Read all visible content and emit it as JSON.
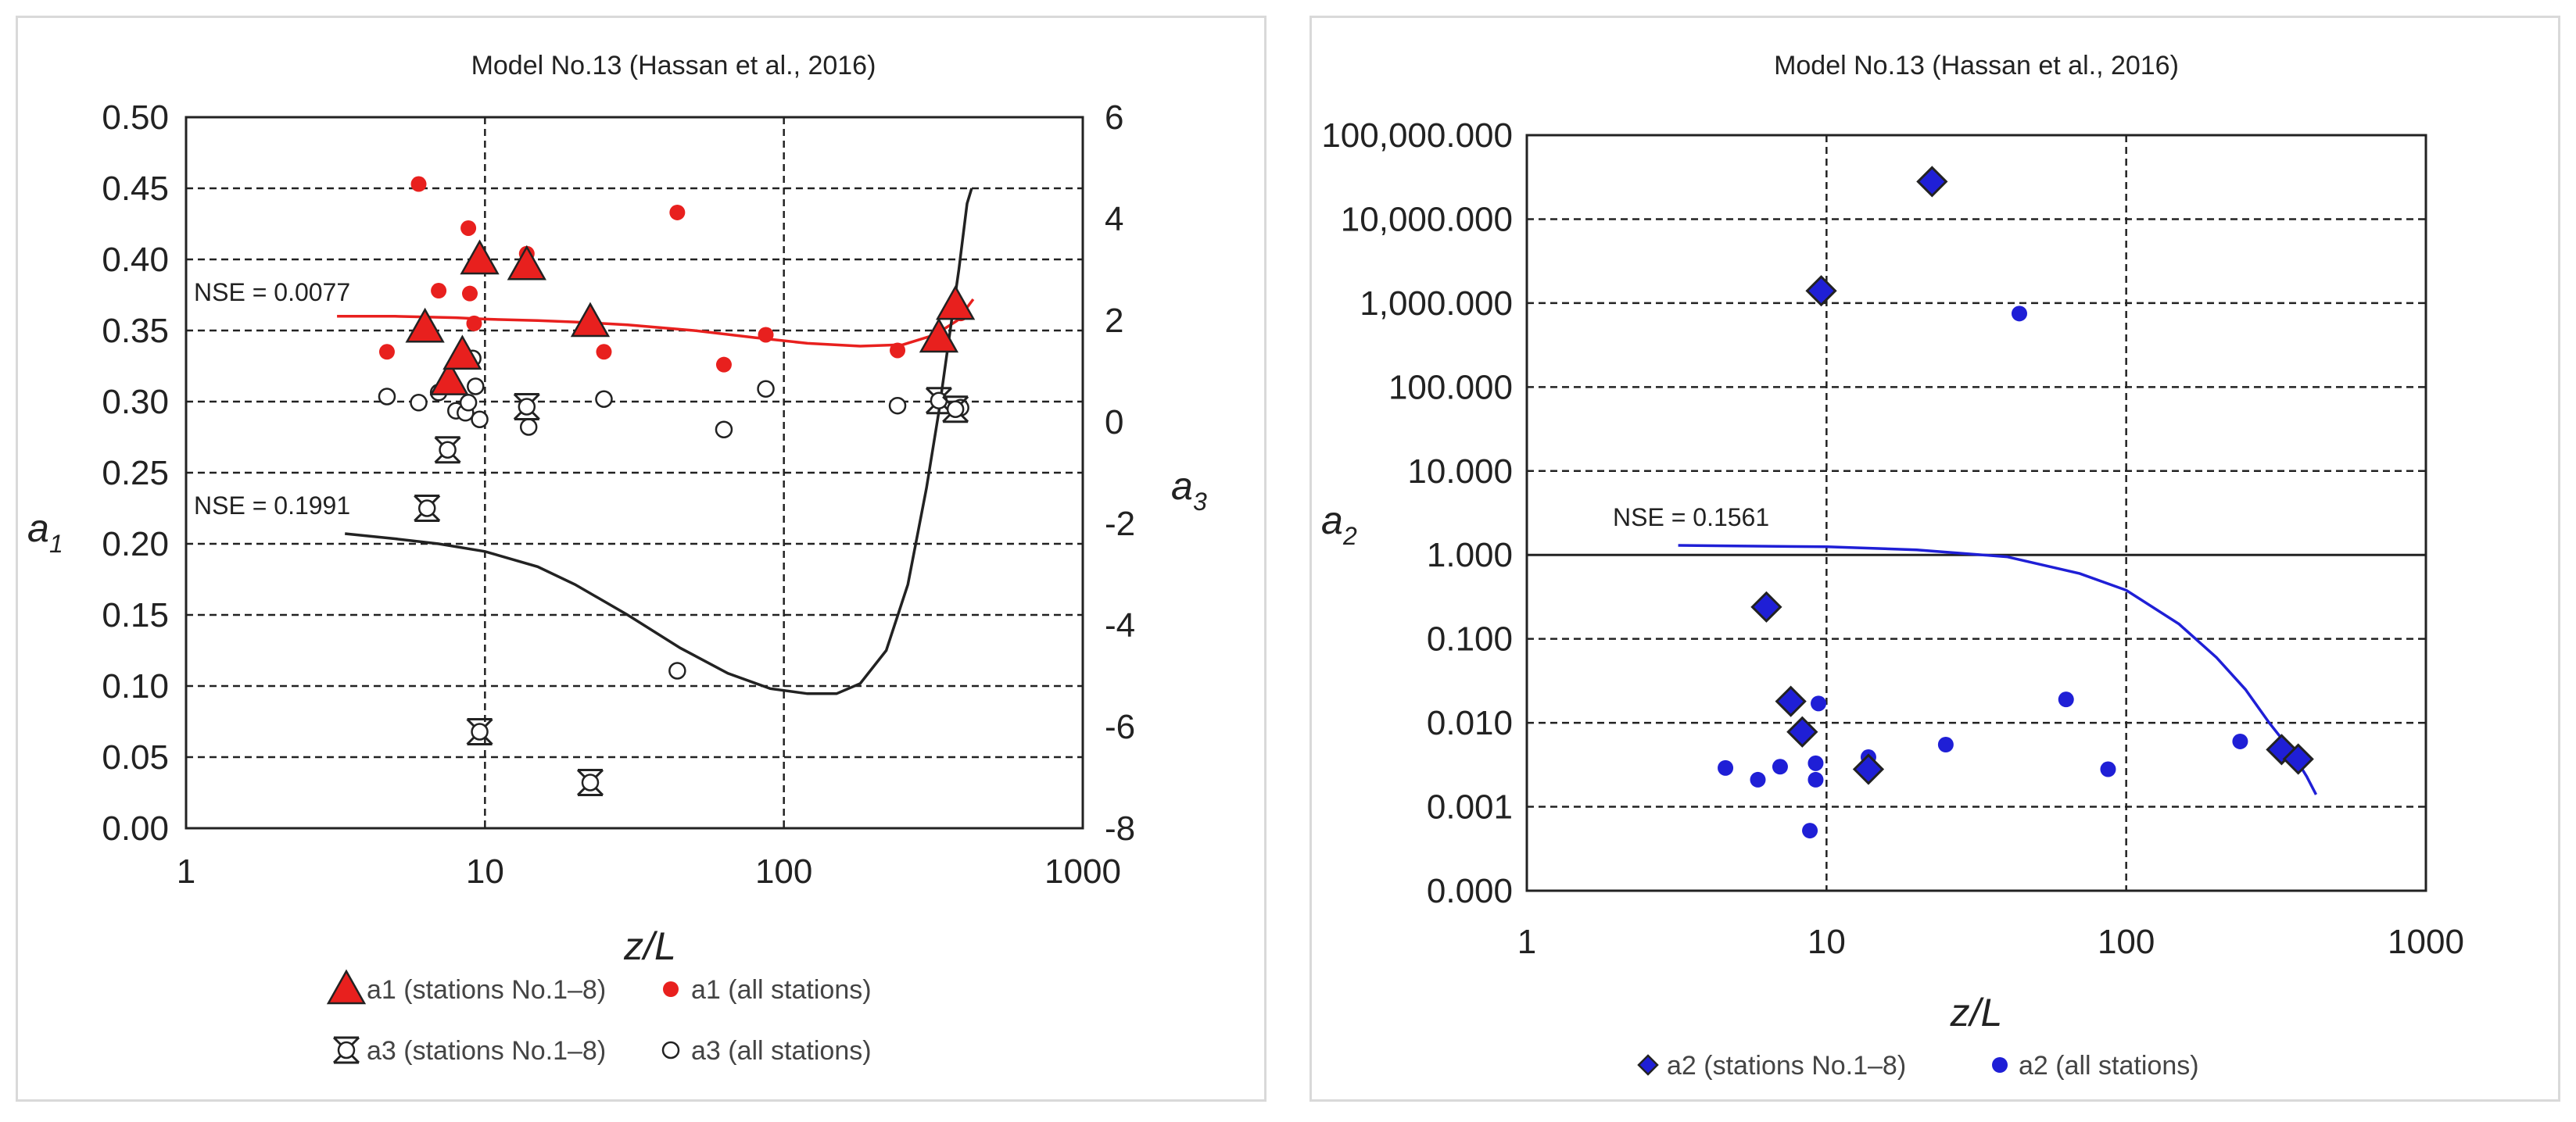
{
  "chart_data": [
    {
      "type": "scatter",
      "title": "Model No.13 (Hassan et al., 2016)",
      "xlabel": "z/L",
      "x_scale": "log",
      "xlim": [
        1,
        1000
      ],
      "x_ticks": [
        "1",
        "10",
        "100",
        "1000"
      ],
      "y_left": {
        "label": "a",
        "label_sub": "1",
        "ylim": [
          0,
          0.5
        ],
        "ticks": [
          "0.00",
          "0.05",
          "0.10",
          "0.15",
          "0.20",
          "0.25",
          "0.30",
          "0.35",
          "0.40",
          "0.45",
          "0.50"
        ]
      },
      "y_right": {
        "label": "a",
        "label_sub": "3",
        "ylim": [
          -8,
          6
        ],
        "ticks": [
          "-8",
          "-6",
          "-4",
          "-2",
          "0",
          "2",
          "4",
          "6"
        ]
      },
      "grid": true,
      "annotations": [
        "NSE = 0.0077",
        "NSE = 0.1991"
      ],
      "series": [
        {
          "name": "a1 (stations No.1–8)",
          "marker": "triangle",
          "color": "#e8201e",
          "axis": "left",
          "points": [
            [
              6.3,
              0.352
            ],
            [
              7.6,
              0.315
            ],
            [
              8.4,
              0.333
            ],
            [
              9.6,
              0.4
            ],
            [
              13.8,
              0.396
            ],
            [
              22.5,
              0.356
            ],
            [
              330,
              0.345
            ],
            [
              375,
              0.368
            ]
          ]
        },
        {
          "name": "a1 (all stations)",
          "marker": "dot",
          "color": "#e8201e",
          "axis": "left",
          "points": [
            [
              4.7,
              0.335
            ],
            [
              6.0,
              0.453
            ],
            [
              7.0,
              0.378
            ],
            [
              8.8,
              0.422
            ],
            [
              8.9,
              0.376
            ],
            [
              9.2,
              0.355
            ],
            [
              13.8,
              0.404
            ],
            [
              25.0,
              0.335
            ],
            [
              44.0,
              0.433
            ],
            [
              63.0,
              0.326
            ],
            [
              87.0,
              0.347
            ],
            [
              240.0,
              0.336
            ],
            [
              390.0,
              0.362
            ]
          ]
        },
        {
          "name": "a3 (stations No.1–8)",
          "marker": "asterisk",
          "color": "#222222",
          "axis": "right",
          "points": [
            [
              6.4,
              -1.7
            ],
            [
              7.5,
              -0.55
            ],
            [
              9.6,
              -6.1
            ],
            [
              13.8,
              0.3
            ],
            [
              22.5,
              -7.1
            ],
            [
              330,
              0.42
            ],
            [
              375,
              0.25
            ]
          ]
        },
        {
          "name": "a3 (all stations)",
          "marker": "circle",
          "color": "#222222",
          "axis": "right",
          "points": [
            [
              4.7,
              0.5
            ],
            [
              6.0,
              0.38
            ],
            [
              7.0,
              0.58
            ],
            [
              8.0,
              0.22
            ],
            [
              8.6,
              0.18
            ],
            [
              8.8,
              0.38
            ],
            [
              9.1,
              1.25
            ],
            [
              9.3,
              0.7
            ],
            [
              9.6,
              0.05
            ],
            [
              14.0,
              -0.1
            ],
            [
              25.0,
              0.45
            ],
            [
              44.0,
              -4.9
            ],
            [
              63.0,
              -0.15
            ],
            [
              87.0,
              0.65
            ],
            [
              240.0,
              0.32
            ],
            [
              390.0,
              0.28
            ]
          ]
        }
      ],
      "fit_curves": [
        {
          "axis": "left",
          "color": "#e8201e",
          "points": [
            [
              3.2,
              0.36
            ],
            [
              5,
              0.36
            ],
            [
              8,
              0.359
            ],
            [
              10,
              0.358
            ],
            [
              15,
              0.357
            ],
            [
              20,
              0.356
            ],
            [
              30,
              0.354
            ],
            [
              50,
              0.35
            ],
            [
              80,
              0.345
            ],
            [
              120,
              0.341
            ],
            [
              180,
              0.339
            ],
            [
              250,
              0.34
            ],
            [
              320,
              0.347
            ],
            [
              380,
              0.357
            ],
            [
              430,
              0.372
            ]
          ]
        },
        {
          "axis": "right",
          "color": "#222222",
          "points": [
            [
              3.4,
              -2.2
            ],
            [
              5,
              -2.3
            ],
            [
              7,
              -2.4
            ],
            [
              10,
              -2.55
            ],
            [
              15,
              -2.85
            ],
            [
              20,
              -3.2
            ],
            [
              30,
              -3.8
            ],
            [
              45,
              -4.45
            ],
            [
              65,
              -4.95
            ],
            [
              90,
              -5.25
            ],
            [
              120,
              -5.35
            ],
            [
              150,
              -5.35
            ],
            [
              180,
              -5.15
            ],
            [
              220,
              -4.5
            ],
            [
              260,
              -3.2
            ],
            [
              300,
              -1.3
            ],
            [
              330,
              0.2
            ],
            [
              360,
              1.8
            ],
            [
              385,
              3.0
            ],
            [
              410,
              4.3
            ],
            [
              425,
              4.6
            ]
          ]
        }
      ]
    },
    {
      "type": "scatter",
      "title": "Model No.13 (Hassan et al., 2016)",
      "xlabel": "z/L",
      "x_scale": "log",
      "xlim": [
        1,
        1000
      ],
      "x_ticks": [
        "1",
        "10",
        "100",
        "1000"
      ],
      "y_scale": "log",
      "y_left": {
        "label": "a",
        "label_sub": "2",
        "ylim": [
          0.0001,
          100000
        ],
        "ticks": [
          "0.000",
          "0.001",
          "0.010",
          "0.100",
          "1.000",
          "10.000",
          "100.000",
          "1,000.000",
          "10,000.000",
          "100,000.000"
        ]
      },
      "grid": true,
      "annotations": [
        "NSE = 0.1561"
      ],
      "series": [
        {
          "name": "a2 (stations No.1–8)",
          "marker": "diamond",
          "color": "#1f1fd6",
          "points": [
            [
              6.3,
              0.24
            ],
            [
              7.6,
              0.018
            ],
            [
              8.3,
              0.0078
            ],
            [
              9.6,
              1400
            ],
            [
              13.8,
              0.0028
            ],
            [
              22.5,
              28000
            ],
            [
              330,
              0.0048
            ],
            [
              375,
              0.0037
            ]
          ]
        },
        {
          "name": "a2 (all stations)",
          "marker": "dot",
          "color": "#1f1fd6",
          "points": [
            [
              4.6,
              0.0029
            ],
            [
              5.9,
              0.0021
            ],
            [
              7.0,
              0.003
            ],
            [
              8.8,
              0.00052
            ],
            [
              9.2,
              0.0033
            ],
            [
              9.2,
              0.0021
            ],
            [
              9.4,
              0.017
            ],
            [
              13.8,
              0.0039
            ],
            [
              25.0,
              0.0055
            ],
            [
              44.0,
              750
            ],
            [
              63.0,
              0.019
            ],
            [
              87.0,
              0.0028
            ],
            [
              240.0,
              0.006
            ]
          ]
        }
      ],
      "fit_curves": [
        {
          "color": "#1f1fd6",
          "points": [
            [
              3.2,
              1.3
            ],
            [
              5,
              1.28
            ],
            [
              10,
              1.25
            ],
            [
              20,
              1.15
            ],
            [
              40,
              0.95
            ],
            [
              70,
              0.6
            ],
            [
              100,
              0.38
            ],
            [
              150,
              0.15
            ],
            [
              200,
              0.06
            ],
            [
              250,
              0.025
            ],
            [
              300,
              0.01
            ],
            [
              350,
              0.005
            ],
            [
              400,
              0.0023
            ],
            [
              430,
              0.0014
            ]
          ]
        }
      ]
    }
  ]
}
